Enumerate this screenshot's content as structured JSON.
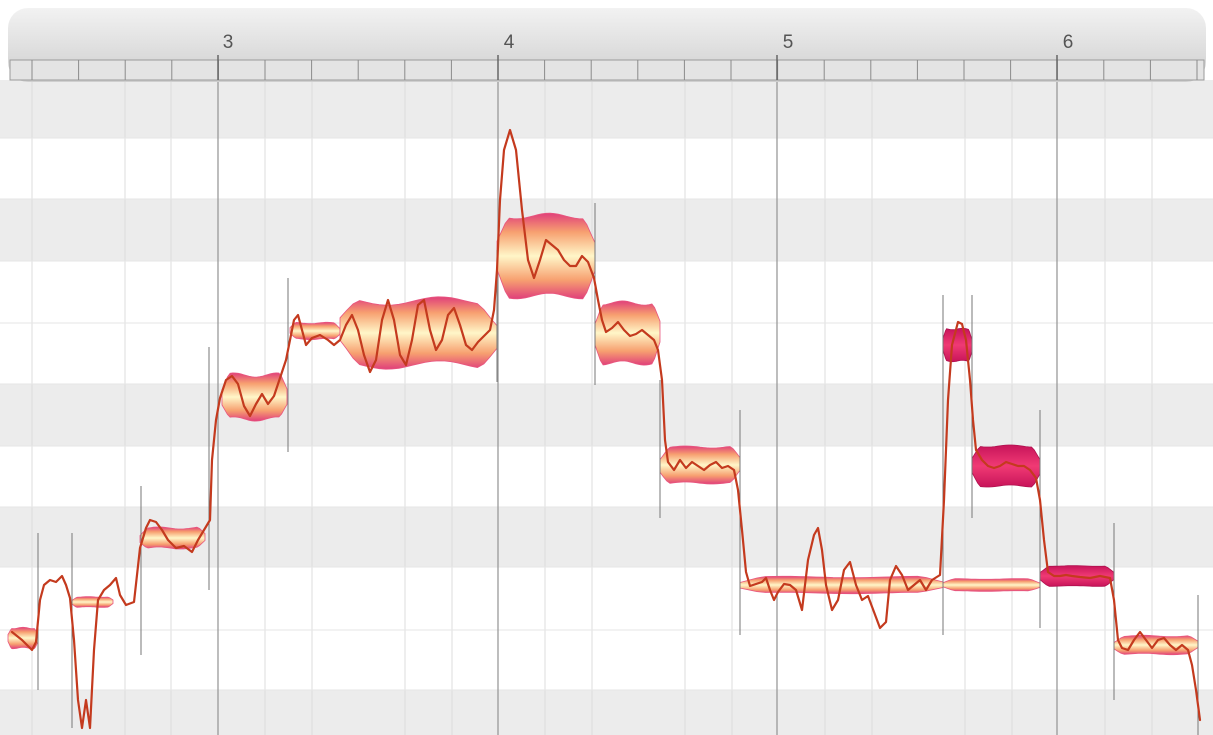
{
  "timeline": {
    "bars": [
      {
        "label": "3"
      },
      {
        "label": "4"
      },
      {
        "label": "5"
      },
      {
        "label": "6"
      }
    ]
  },
  "colors": {
    "blob_core": "#fff6c8",
    "blob_mid": "#f7b27a",
    "blob_edge": "#e0407a",
    "selected_core": "#f0306e",
    "selected_edge": "#c8145a",
    "pitch_curve": "#c43a1e",
    "row_shade": "#ececec",
    "grid_line": "#dcdcdc",
    "bar_line": "#9a9a9a",
    "ruler_bg": "#d9d9d9"
  },
  "notes": [
    {
      "id": "n1",
      "selected": false
    },
    {
      "id": "n2",
      "selected": false
    },
    {
      "id": "n3",
      "selected": false
    },
    {
      "id": "n4",
      "selected": false
    },
    {
      "id": "n5",
      "selected": false
    },
    {
      "id": "n6",
      "selected": false
    },
    {
      "id": "n7",
      "selected": false
    },
    {
      "id": "n8",
      "selected": false
    },
    {
      "id": "n9",
      "selected": false
    },
    {
      "id": "n10",
      "selected": false
    },
    {
      "id": "n11",
      "selected": false
    },
    {
      "id": "n12",
      "selected": true
    },
    {
      "id": "n13",
      "selected": true
    },
    {
      "id": "n14",
      "selected": true
    },
    {
      "id": "n15",
      "selected": false
    }
  ]
}
